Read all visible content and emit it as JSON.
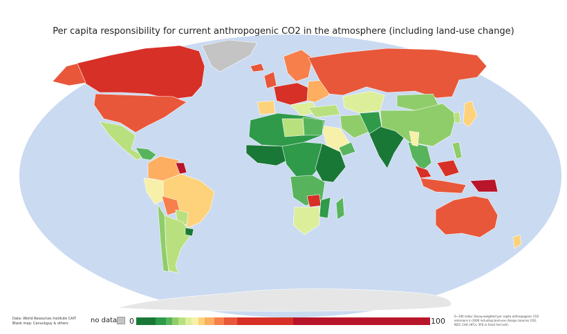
{
  "title": "Per capita responsibility for current anthropogenic CO2 in the atmosphere (including land-use change)",
  "credits": {
    "line1": "Data: World Resources Institute CAIT",
    "line2": "Blank map: Canuckguy & others"
  },
  "legend": {
    "no_data_label": "no data",
    "no_data_color": "#c4c4c4",
    "min_label": "0",
    "max_label": "100",
    "bins": [
      {
        "color": "#1a7837",
        "weight": 6
      },
      {
        "color": "#2e9a4a",
        "weight": 3
      },
      {
        "color": "#57b45c",
        "weight": 2
      },
      {
        "color": "#8fcd6a",
        "weight": 2
      },
      {
        "color": "#b9e07e",
        "weight": 2
      },
      {
        "color": "#dcee9a",
        "weight": 2
      },
      {
        "color": "#f6f0a8",
        "weight": 2
      },
      {
        "color": "#fdd27a",
        "weight": 2
      },
      {
        "color": "#fdae61",
        "weight": 3
      },
      {
        "color": "#f67f4b",
        "weight": 3
      },
      {
        "color": "#e8573a",
        "weight": 4
      },
      {
        "color": "#d73027",
        "weight": 17
      },
      {
        "color": "#b8152a",
        "weight": 42
      }
    ]
  },
  "footnote": "0~100 index: Decay-weighted per capita anthropogenic CO2 emissions in 2000 including land-use change (sources CO2, N2O, CH4, HFCs, SF6 or fossil fuel ash)."
}
